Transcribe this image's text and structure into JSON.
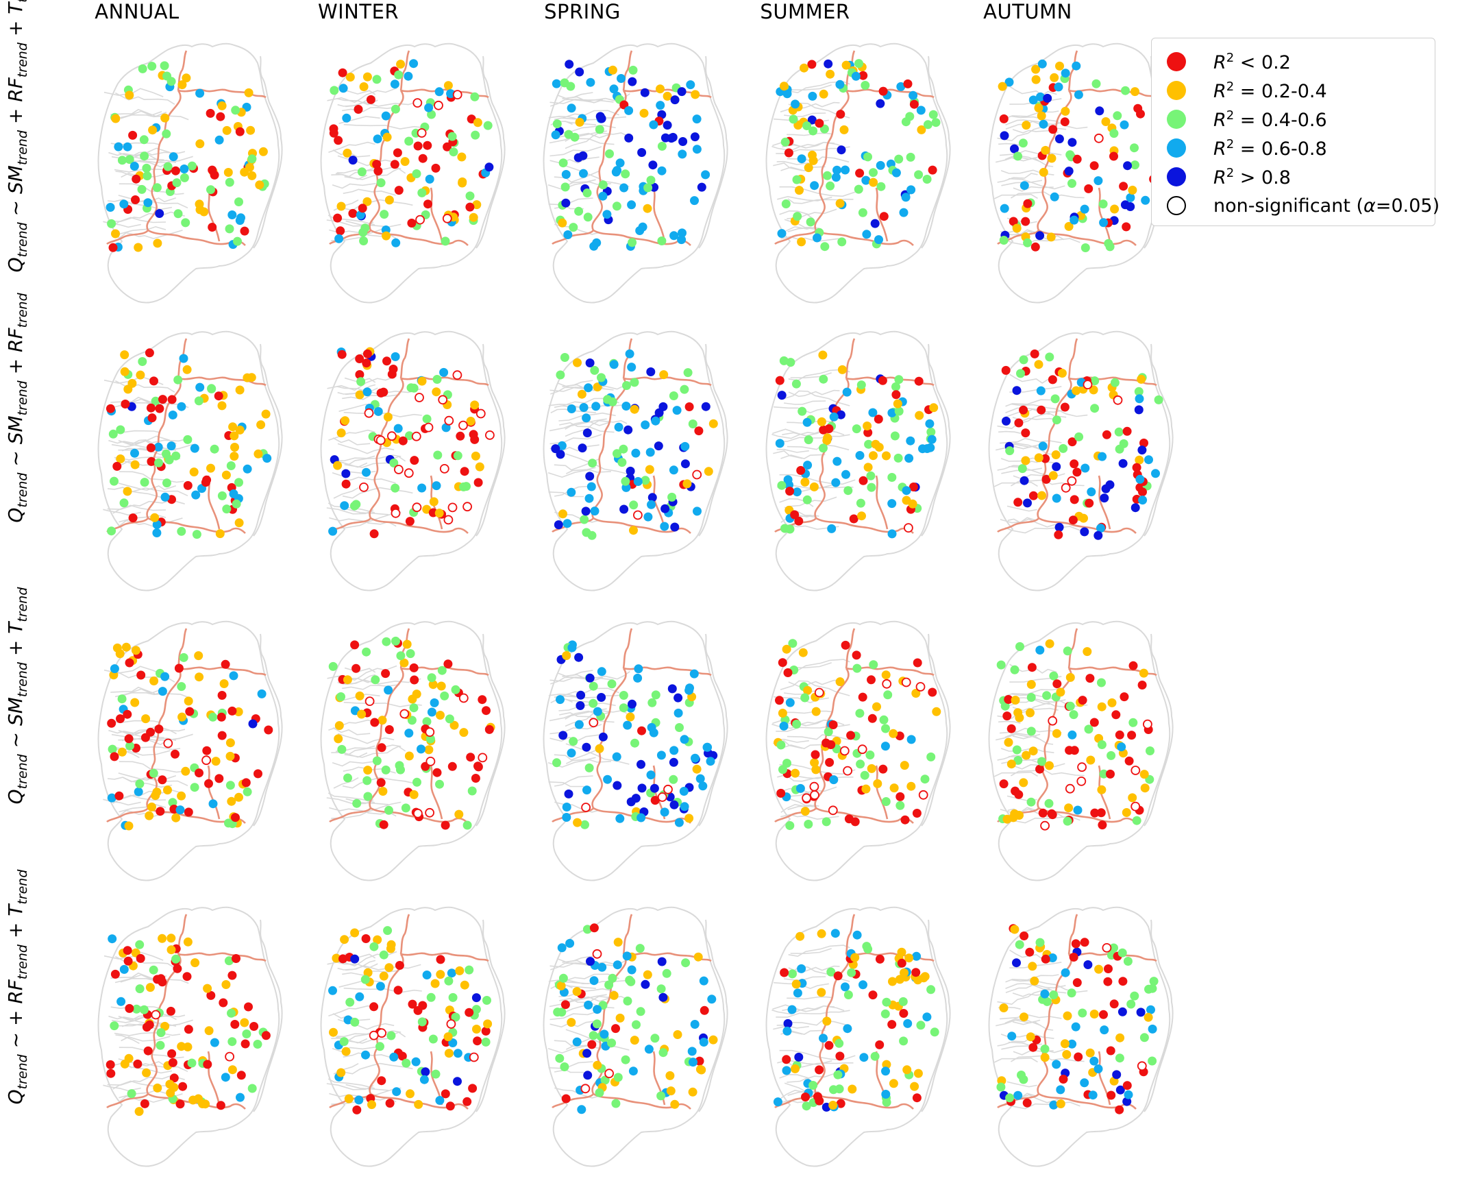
{
  "figure": {
    "columns": [
      "ANNUAL",
      "WINTER",
      "SPRING",
      "SUMMER",
      "AUTUMN"
    ],
    "rows": [
      {
        "Q": "Q",
        "Q_sub": "trend",
        "tilde": "~",
        "rhs": "SM_trend + RF_trend + T_trend",
        "terms": [
          {
            "v": "SM",
            "s": "trend"
          },
          {
            "v": "RF",
            "s": "trend"
          },
          {
            "v": "T",
            "s": "trend"
          }
        ]
      },
      {
        "Q": "Q",
        "Q_sub": "trend",
        "tilde": "~",
        "rhs": "SM_trend + RF_trend",
        "terms": [
          {
            "v": "SM",
            "s": "trend"
          },
          {
            "v": "RF",
            "s": "trend"
          }
        ]
      },
      {
        "Q": "Q",
        "Q_sub": "trend",
        "tilde": "~",
        "rhs": "SM_trend + T_trend",
        "terms": [
          {
            "v": "SM",
            "s": "trend"
          },
          {
            "v": "T",
            "s": "trend"
          }
        ]
      },
      {
        "Q": "Q",
        "Q_sub": "trend",
        "tilde": "~",
        "rhs": "+ RF_trend + T_trend",
        "leading_plus": true,
        "terms": [
          {
            "v": "RF",
            "s": "trend"
          },
          {
            "v": "T",
            "s": "trend"
          }
        ]
      }
    ]
  },
  "legend": {
    "items": [
      {
        "key": "lt02",
        "label_prefix": "R",
        "sup": "2",
        "label_suffix": " < 0.2",
        "color": "#ee1111",
        "filled": true
      },
      {
        "key": "02_04",
        "label_prefix": "R",
        "sup": "2",
        "label_suffix": " = 0.2-0.4",
        "color": "#ffc000",
        "filled": true
      },
      {
        "key": "04_06",
        "label_prefix": "R",
        "sup": "2",
        "label_suffix": " = 0.4-0.6",
        "color": "#77f477",
        "filled": true
      },
      {
        "key": "06_08",
        "label_prefix": "R",
        "sup": "2",
        "label_suffix": " = 0.6-0.8",
        "color": "#11aaee",
        "filled": true
      },
      {
        "key": "gt08",
        "label_prefix": "R",
        "sup": "2",
        "label_suffix": " > 0.8",
        "color": "#0a14dd",
        "filled": true
      },
      {
        "key": "ns",
        "label_prefix": "non-significant (",
        "sup": "",
        "italic": "α",
        "label_suffix": "=0.05)",
        "color": "#000000",
        "filled": false
      }
    ]
  },
  "map_style": {
    "outline_color": "#d9d9d9",
    "border_color": "#e8917a"
  },
  "panels": [
    {
      "col": "ANNUAL",
      "row": 1,
      "counts": {
        "lt02": 18,
        "02_04": 30,
        "04_06": 34,
        "06_08": 20,
        "gt08": 1
      },
      "nonsig": 0
    },
    {
      "col": "WINTER",
      "row": 1,
      "counts": {
        "lt02": 30,
        "02_04": 24,
        "04_06": 28,
        "06_08": 18,
        "gt08": 3
      },
      "nonsig": 6
    },
    {
      "col": "SPRING",
      "row": 1,
      "counts": {
        "lt02": 2,
        "02_04": 8,
        "04_06": 26,
        "06_08": 40,
        "gt08": 27
      },
      "nonsig": 0
    },
    {
      "col": "SUMMER",
      "row": 1,
      "counts": {
        "lt02": 12,
        "02_04": 22,
        "04_06": 36,
        "06_08": 30,
        "gt08": 6
      },
      "nonsig": 0
    },
    {
      "col": "AUTUMN",
      "row": 1,
      "counts": {
        "lt02": 22,
        "02_04": 24,
        "04_06": 22,
        "06_08": 20,
        "gt08": 14
      },
      "nonsig": 1
    },
    {
      "col": "ANNUAL",
      "row": 2,
      "counts": {
        "lt02": 24,
        "02_04": 30,
        "04_06": 28,
        "06_08": 20,
        "gt08": 1
      },
      "nonsig": 0
    },
    {
      "col": "WINTER",
      "row": 2,
      "counts": {
        "lt02": 28,
        "02_04": 20,
        "04_06": 18,
        "06_08": 14,
        "gt08": 4
      },
      "nonsig": 22
    },
    {
      "col": "SPRING",
      "row": 2,
      "counts": {
        "lt02": 4,
        "02_04": 12,
        "04_06": 26,
        "06_08": 34,
        "gt08": 26
      },
      "nonsig": 2
    },
    {
      "col": "SUMMER",
      "row": 2,
      "counts": {
        "lt02": 18,
        "02_04": 22,
        "04_06": 32,
        "06_08": 28,
        "gt08": 6
      },
      "nonsig": 1
    },
    {
      "col": "AUTUMN",
      "row": 2,
      "counts": {
        "lt02": 32,
        "02_04": 18,
        "04_06": 20,
        "06_08": 14,
        "gt08": 16
      },
      "nonsig": 4
    },
    {
      "col": "ANNUAL",
      "row": 3,
      "counts": {
        "lt02": 36,
        "02_04": 34,
        "04_06": 18,
        "06_08": 12,
        "gt08": 1
      },
      "nonsig": 2
    },
    {
      "col": "WINTER",
      "row": 3,
      "counts": {
        "lt02": 30,
        "02_04": 26,
        "04_06": 34,
        "06_08": 6,
        "gt08": 0
      },
      "nonsig": 8
    },
    {
      "col": "SPRING",
      "row": 3,
      "counts": {
        "lt02": 2,
        "02_04": 8,
        "04_06": 24,
        "06_08": 38,
        "gt08": 28
      },
      "nonsig": 4
    },
    {
      "col": "SUMMER",
      "row": 3,
      "counts": {
        "lt02": 30,
        "02_04": 28,
        "04_06": 30,
        "06_08": 8,
        "gt08": 0
      },
      "nonsig": 12
    },
    {
      "col": "AUTUMN",
      "row": 3,
      "counts": {
        "lt02": 32,
        "02_04": 34,
        "04_06": 30,
        "06_08": 4,
        "gt08": 0
      },
      "nonsig": 8
    },
    {
      "col": "ANNUAL",
      "row": 4,
      "counts": {
        "lt02": 40,
        "02_04": 34,
        "04_06": 22,
        "06_08": 6,
        "gt08": 0
      },
      "nonsig": 2
    },
    {
      "col": "WINTER",
      "row": 4,
      "counts": {
        "lt02": 28,
        "02_04": 26,
        "04_06": 24,
        "06_08": 18,
        "gt08": 4
      },
      "nonsig": 4
    },
    {
      "col": "SPRING",
      "row": 4,
      "counts": {
        "lt02": 8,
        "02_04": 24,
        "04_06": 34,
        "06_08": 26,
        "gt08": 8
      },
      "nonsig": 3
    },
    {
      "col": "SUMMER",
      "row": 4,
      "counts": {
        "lt02": 20,
        "02_04": 30,
        "04_06": 26,
        "06_08": 26,
        "gt08": 4
      },
      "nonsig": 0
    },
    {
      "col": "AUTUMN",
      "row": 4,
      "counts": {
        "lt02": 26,
        "02_04": 24,
        "04_06": 24,
        "06_08": 18,
        "gt08": 10
      },
      "nonsig": 2
    }
  ]
}
